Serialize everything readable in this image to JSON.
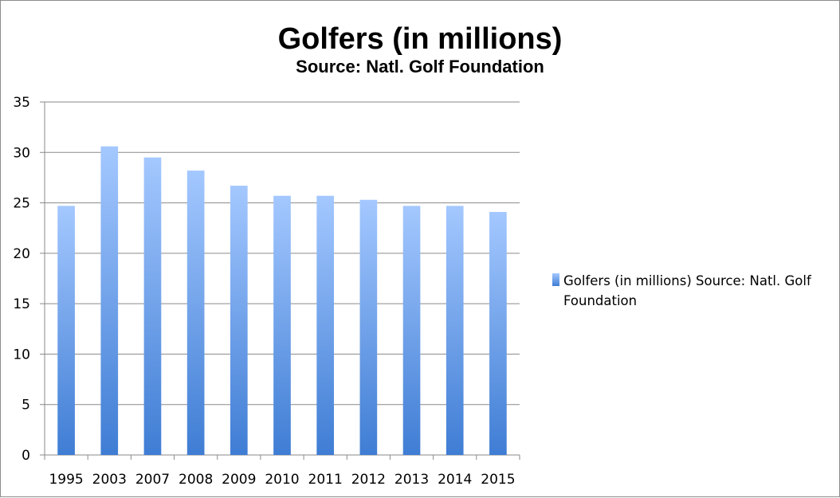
{
  "chart_data": {
    "type": "bar",
    "title": "Golfers (in millions)",
    "subtitle": "Source: Natl. Golf Foundation",
    "xlabel": "",
    "ylabel": "",
    "categories": [
      "1995",
      "2003",
      "2007",
      "2008",
      "2009",
      "2010",
      "2011",
      "2012",
      "2013",
      "2014",
      "2015"
    ],
    "series": [
      {
        "name": "Golfers (in millions) Source: Natl. Golf Foundation",
        "values": [
          24.7,
          30.6,
          29.5,
          28.2,
          26.7,
          25.7,
          25.7,
          25.3,
          24.7,
          24.7,
          24.1
        ],
        "color_top": "#a4c8ff",
        "color_bottom": "#3f7dd4"
      }
    ],
    "ylim": [
      0,
      35
    ],
    "yticks": [
      "0",
      "5",
      "10",
      "15",
      "20",
      "25",
      "30",
      "35"
    ],
    "grid": true,
    "legend_position": "right",
    "legend_lines": [
      "Golfers (in millions) Source: Natl. Golf",
      "Foundation"
    ]
  }
}
